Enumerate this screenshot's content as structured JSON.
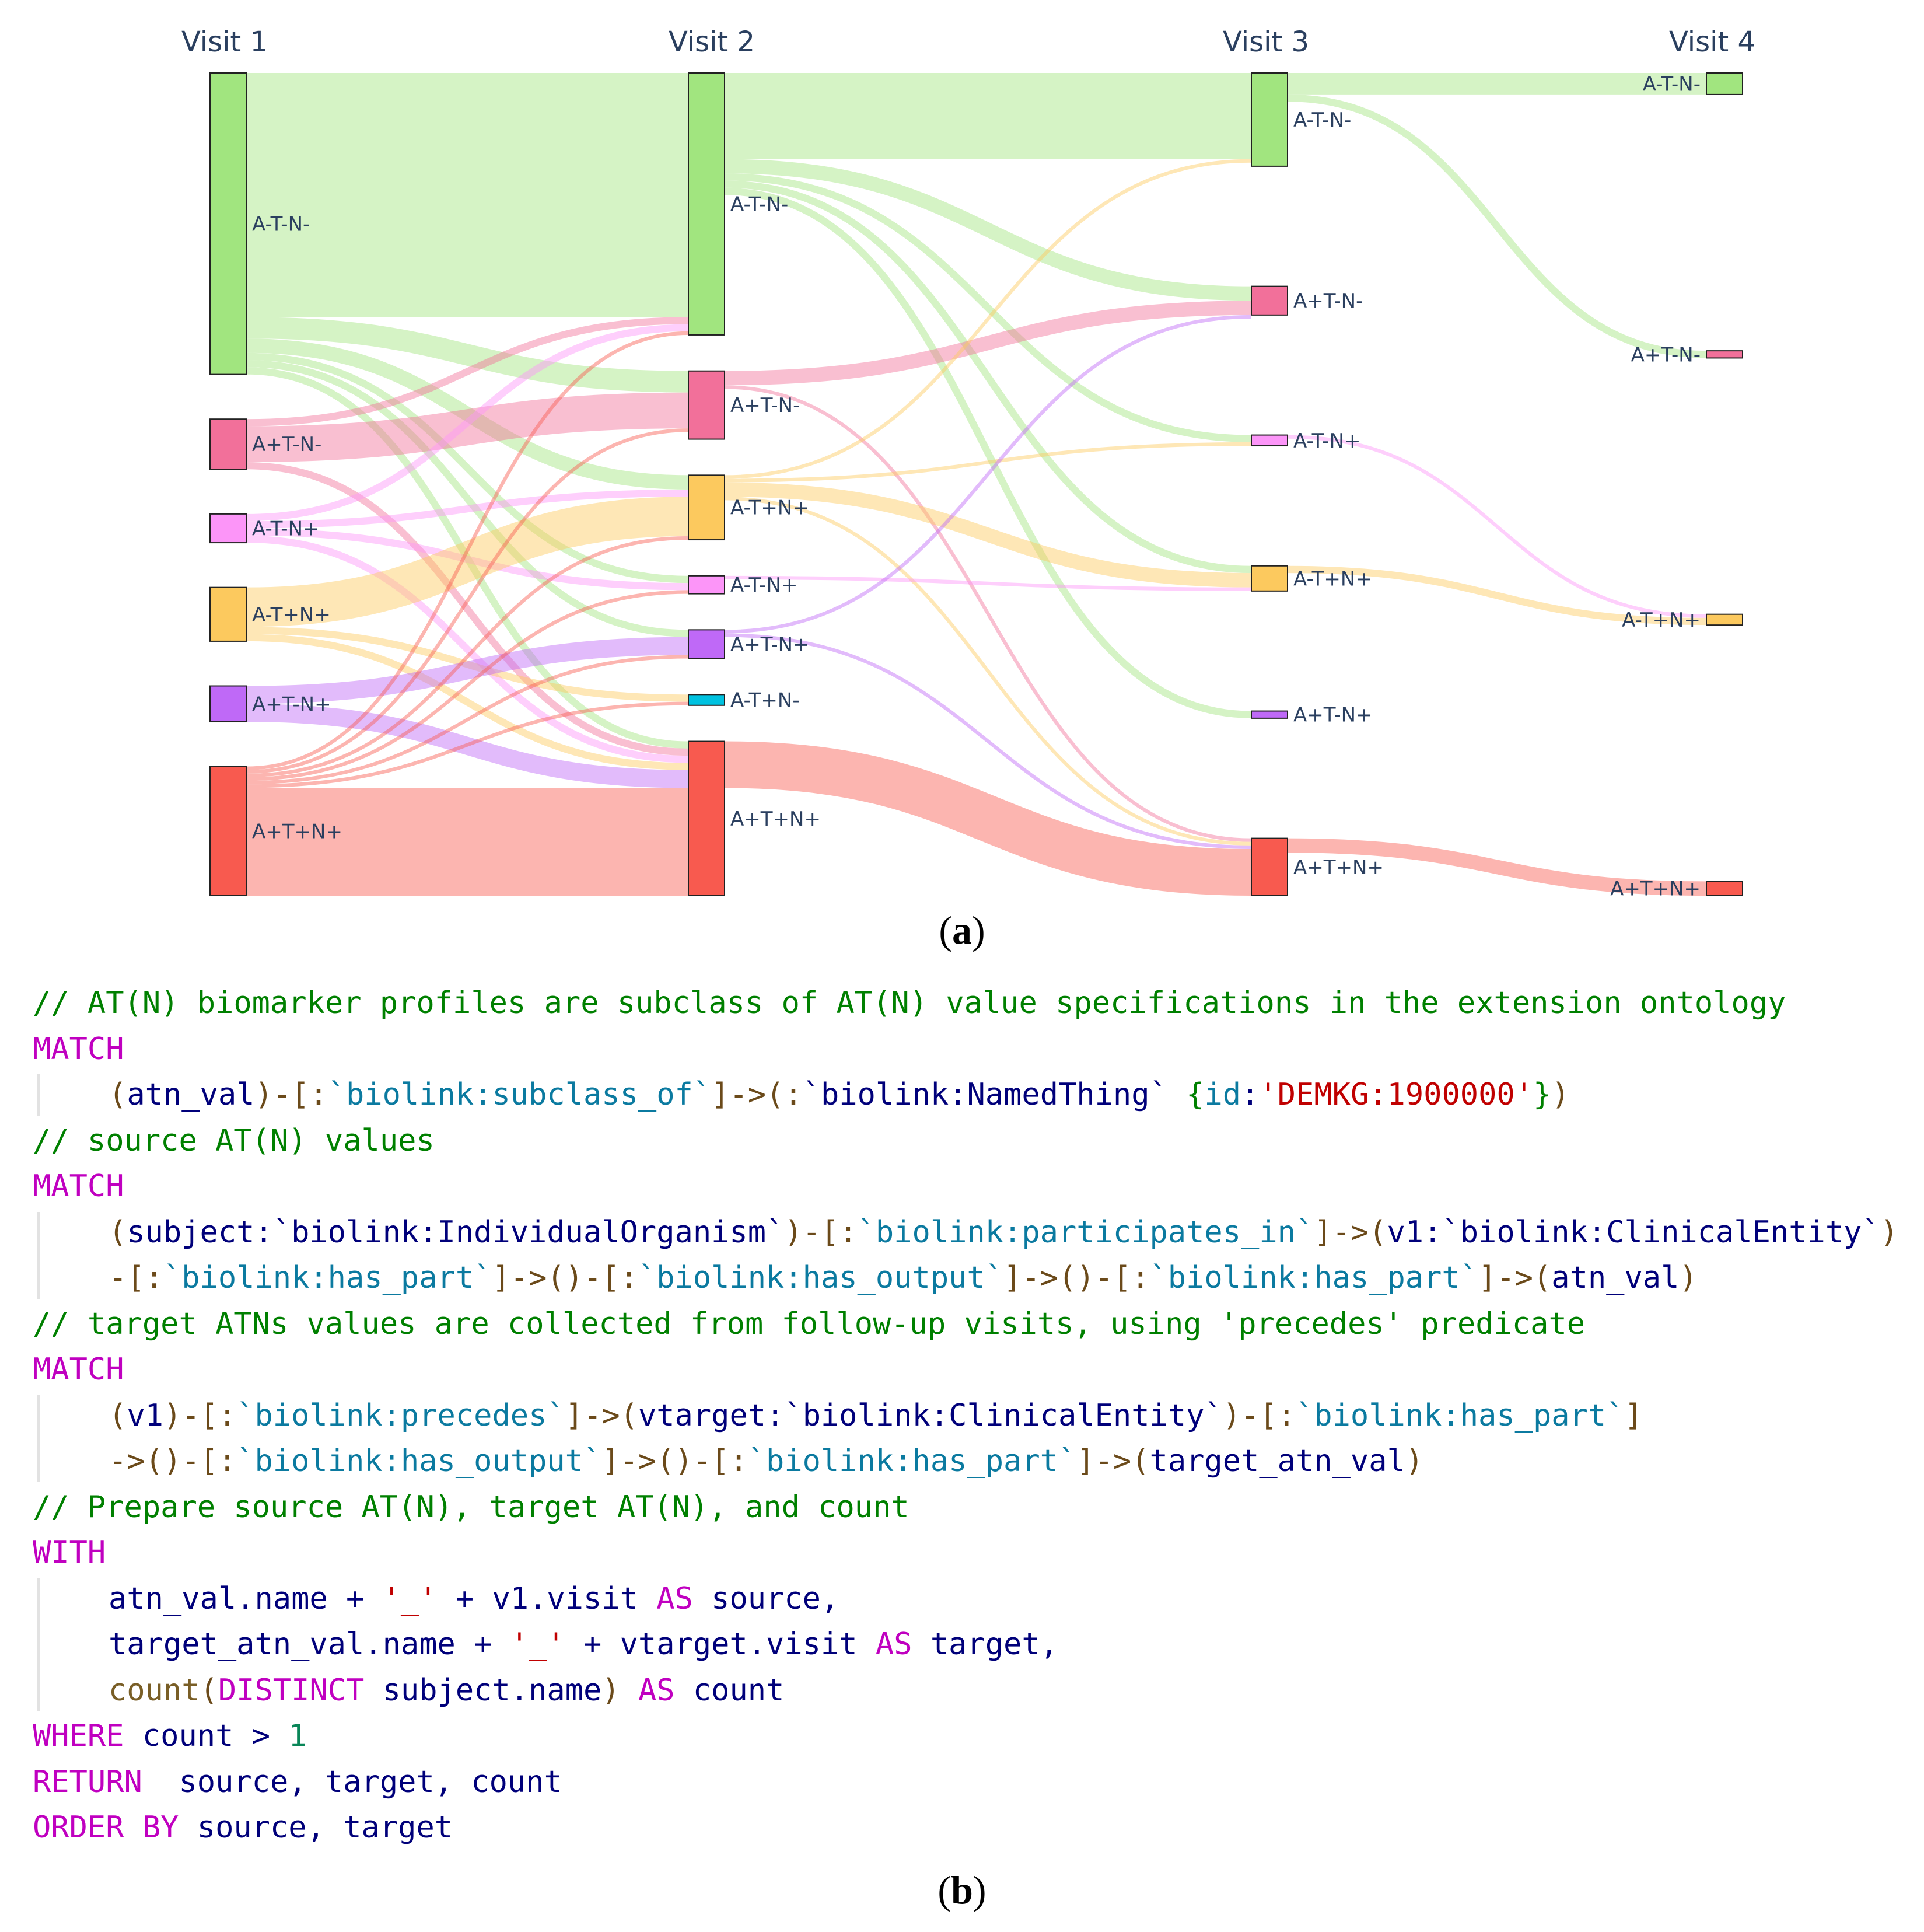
{
  "chart_data": {
    "type": "sankey",
    "title": "",
    "columns": [
      "Visit 1",
      "Visit 2",
      "Visit 3",
      "Visit 4"
    ],
    "nodes": [
      {
        "id": "v1_A-T-N-",
        "label": "A-T-N-",
        "col": 0,
        "value": 42,
        "color": "#a1e57f"
      },
      {
        "id": "v1_A+T-N-",
        "label": "A+T-N-",
        "col": 0,
        "value": 7,
        "color": "#f2709a"
      },
      {
        "id": "v1_A-T-N+",
        "label": "A-T-N+",
        "col": 0,
        "value": 4,
        "color": "#fc95f8"
      },
      {
        "id": "v1_A-T+N+",
        "label": "A-T+N+",
        "col": 0,
        "value": 7.5,
        "color": "#fcc95e"
      },
      {
        "id": "v1_A+T-N+",
        "label": "A+T-N+",
        "col": 0,
        "value": 5,
        "color": "#bf69f7"
      },
      {
        "id": "v1_A+T+N+",
        "label": "A+T+N+",
        "col": 0,
        "value": 18,
        "color": "#f85a4f"
      },
      {
        "id": "v2_A-T-N-",
        "label": "A-T-N-",
        "col": 1,
        "value": 36.5,
        "color": "#a1e57f"
      },
      {
        "id": "v2_A+T-N-",
        "label": "A+T-N-",
        "col": 1,
        "value": 9.5,
        "color": "#f2709a"
      },
      {
        "id": "v2_A-T+N+",
        "label": "A-T+N+",
        "col": 1,
        "value": 9,
        "color": "#fcc95e"
      },
      {
        "id": "v2_A-T-N+",
        "label": "A-T-N+",
        "col": 1,
        "value": 2.5,
        "color": "#fc95f8"
      },
      {
        "id": "v2_A+T-N+",
        "label": "A+T-N+",
        "col": 1,
        "value": 4,
        "color": "#bf69f7"
      },
      {
        "id": "v2_A-T+N-",
        "label": "A-T+N-",
        "col": 1,
        "value": 1.5,
        "color": "#00c2e0"
      },
      {
        "id": "v2_A+T+N+",
        "label": "A+T+N+",
        "col": 1,
        "value": 21.5,
        "color": "#f85a4f"
      },
      {
        "id": "v3_A-T-N-",
        "label": "A-T-N-",
        "col": 2,
        "value": 13,
        "color": "#a1e57f"
      },
      {
        "id": "v3_A+T-N-",
        "label": "A+T-N-",
        "col": 2,
        "value": 4,
        "color": "#f2709a"
      },
      {
        "id": "v3_A-T-N+",
        "label": "A-T-N+",
        "col": 2,
        "value": 1.5,
        "color": "#fc95f8"
      },
      {
        "id": "v3_A-T+N+",
        "label": "A-T+N+",
        "col": 2,
        "value": 3.5,
        "color": "#fcc95e"
      },
      {
        "id": "v3_A+T-N+",
        "label": "A+T-N+",
        "col": 2,
        "value": 1,
        "color": "#bf69f7"
      },
      {
        "id": "v3_A+T+N+",
        "label": "A+T+N+",
        "col": 2,
        "value": 8,
        "color": "#f85a4f"
      },
      {
        "id": "v4_A-T-N-",
        "label": "A-T-N-",
        "col": 3,
        "value": 3,
        "color": "#a1e57f"
      },
      {
        "id": "v4_A+T-N-",
        "label": "A+T-N-",
        "col": 3,
        "value": 1,
        "color": "#f2709a"
      },
      {
        "id": "v4_A-T+N+",
        "label": "A-T+N+",
        "col": 3,
        "value": 1.5,
        "color": "#fcc95e"
      },
      {
        "id": "v4_A+T+N+",
        "label": "A+T+N+",
        "col": 3,
        "value": 2,
        "color": "#f85a4f"
      }
    ],
    "links": [
      {
        "source": "v1_A-T-N-",
        "target": "v2_A-T-N-",
        "value": 34
      },
      {
        "source": "v1_A-T-N-",
        "target": "v2_A+T-N-",
        "value": 3
      },
      {
        "source": "v1_A-T-N-",
        "target": "v2_A-T+N+",
        "value": 2
      },
      {
        "source": "v1_A-T-N-",
        "target": "v2_A-T-N+",
        "value": 1
      },
      {
        "source": "v1_A-T-N-",
        "target": "v2_A+T-N+",
        "value": 1
      },
      {
        "source": "v1_A-T-N-",
        "target": "v2_A+T+N+",
        "value": 1
      },
      {
        "source": "v1_A+T-N-",
        "target": "v2_A-T-N-",
        "value": 1
      },
      {
        "source": "v1_A+T-N-",
        "target": "v2_A+T-N-",
        "value": 5
      },
      {
        "source": "v1_A+T-N-",
        "target": "v2_A+T+N+",
        "value": 1
      },
      {
        "source": "v1_A-T-N+",
        "target": "v2_A-T-N-",
        "value": 1
      },
      {
        "source": "v1_A-T-N+",
        "target": "v2_A-T+N+",
        "value": 1
      },
      {
        "source": "v1_A-T-N+",
        "target": "v2_A-T-N+",
        "value": 1
      },
      {
        "source": "v1_A-T-N+",
        "target": "v2_A+T+N+",
        "value": 1
      },
      {
        "source": "v1_A-T+N+",
        "target": "v2_A-T+N+",
        "value": 5.5
      },
      {
        "source": "v1_A-T+N+",
        "target": "v2_A-T+N-",
        "value": 1
      },
      {
        "source": "v1_A-T+N+",
        "target": "v2_A+T+N+",
        "value": 1
      },
      {
        "source": "v1_A+T-N+",
        "target": "v2_A+T-N+",
        "value": 2.5
      },
      {
        "source": "v1_A+T-N+",
        "target": "v2_A+T+N+",
        "value": 2.5
      },
      {
        "source": "v1_A+T+N+",
        "target": "v2_A-T-N-",
        "value": 0.5
      },
      {
        "source": "v1_A+T+N+",
        "target": "v2_A+T-N-",
        "value": 0.5
      },
      {
        "source": "v1_A+T+N+",
        "target": "v2_A-T+N+",
        "value": 0.5
      },
      {
        "source": "v1_A+T+N+",
        "target": "v2_A-T-N+",
        "value": 0.5
      },
      {
        "source": "v1_A+T+N+",
        "target": "v2_A+T-N+",
        "value": 0.5
      },
      {
        "source": "v1_A+T+N+",
        "target": "v2_A-T+N-",
        "value": 0.5
      },
      {
        "source": "v1_A+T+N+",
        "target": "v2_A+T+N+",
        "value": 15
      },
      {
        "source": "v2_A-T-N-",
        "target": "v3_A-T-N-",
        "value": 12
      },
      {
        "source": "v2_A-T-N-",
        "target": "v3_A+T-N-",
        "value": 2
      },
      {
        "source": "v2_A-T-N-",
        "target": "v3_A-T-N+",
        "value": 1
      },
      {
        "source": "v2_A-T-N-",
        "target": "v3_A-T+N+",
        "value": 1
      },
      {
        "source": "v2_A-T-N-",
        "target": "v3_A+T-N+",
        "value": 1
      },
      {
        "source": "v2_A+T-N-",
        "target": "v3_A+T-N-",
        "value": 2
      },
      {
        "source": "v2_A+T-N-",
        "target": "v3_A+T+N+",
        "value": 0.5
      },
      {
        "source": "v2_A-T+N+",
        "target": "v3_A-T-N-",
        "value": 0.5
      },
      {
        "source": "v2_A-T+N+",
        "target": "v3_A-T-N+",
        "value": 0.5
      },
      {
        "source": "v2_A-T+N+",
        "target": "v3_A-T+N+",
        "value": 2
      },
      {
        "source": "v2_A-T+N+",
        "target": "v3_A+T+N+",
        "value": 0.5
      },
      {
        "source": "v2_A-T-N+",
        "target": "v3_A-T+N+",
        "value": 0.5
      },
      {
        "source": "v2_A+T-N+",
        "target": "v3_A+T-N-",
        "value": 0.5
      },
      {
        "source": "v2_A+T-N+",
        "target": "v3_A+T+N+",
        "value": 0.5
      },
      {
        "source": "v2_A+T+N+",
        "target": "v3_A+T+N+",
        "value": 6.5
      },
      {
        "source": "v3_A-T-N-",
        "target": "v4_A-T-N-",
        "value": 3
      },
      {
        "source": "v3_A-T-N-",
        "target": "v4_A+T-N-",
        "value": 1
      },
      {
        "source": "v3_A-T-N+",
        "target": "v4_A-T+N+",
        "value": 0.5
      },
      {
        "source": "v3_A-T+N+",
        "target": "v4_A-T+N+",
        "value": 1
      },
      {
        "source": "v3_A+T+N+",
        "target": "v4_A+T+N+",
        "value": 2
      }
    ]
  },
  "captions": {
    "a": "a",
    "b": "b"
  },
  "code": {
    "lines": [
      {
        "indent": false,
        "tokens": [
          [
            "comment",
            "// AT(N) biomarker profiles are subclass of AT(N) value specifications in the extension ontology"
          ]
        ]
      },
      {
        "indent": false,
        "tokens": [
          [
            "kw",
            "MATCH"
          ]
        ]
      },
      {
        "indent": true,
        "tokens": [
          [
            "br",
            "("
          ],
          [
            "id",
            "atn_val"
          ],
          [
            "br",
            ")-[:"
          ],
          [
            "bl",
            "`biolink:subclass_of`"
          ],
          [
            "br",
            "]->(:"
          ],
          [
            "id",
            "`biolink:NamedThing`"
          ],
          [
            "id",
            " "
          ],
          [
            "gr",
            "{"
          ],
          [
            "bl",
            "id"
          ],
          [
            "id",
            ":"
          ],
          [
            "str",
            "'DEMKG:1900000'"
          ],
          [
            "gr",
            "}"
          ],
          [
            "br",
            ")"
          ]
        ]
      },
      {
        "indent": false,
        "tokens": [
          [
            "comment",
            "// source AT(N) values"
          ]
        ]
      },
      {
        "indent": false,
        "tokens": [
          [
            "kw",
            "MATCH"
          ]
        ]
      },
      {
        "indent": true,
        "tokens": [
          [
            "br",
            "("
          ],
          [
            "id",
            "subject:"
          ],
          [
            "id",
            "`biolink:IndividualOrganism`"
          ],
          [
            "br",
            ")-[:"
          ],
          [
            "bl",
            "`biolink:participates_in`"
          ],
          [
            "br",
            "]->("
          ],
          [
            "id",
            "v1:"
          ],
          [
            "id",
            "`biolink:ClinicalEntity`"
          ],
          [
            "br",
            ")"
          ]
        ]
      },
      {
        "indent": true,
        "tokens": [
          [
            "br",
            "-[:"
          ],
          [
            "bl",
            "`biolink:has_part`"
          ],
          [
            "br",
            "]->()-[:"
          ],
          [
            "bl",
            "`biolink:has_output`"
          ],
          [
            "br",
            "]->()-[:"
          ],
          [
            "bl",
            "`biolink:has_part`"
          ],
          [
            "br",
            "]->("
          ],
          [
            "id",
            "atn_val"
          ],
          [
            "br",
            ")"
          ]
        ]
      },
      {
        "indent": false,
        "tokens": [
          [
            "comment",
            "// target ATNs values are collected from follow-up visits, using 'precedes' predicate"
          ]
        ]
      },
      {
        "indent": false,
        "tokens": [
          [
            "kw",
            "MATCH"
          ]
        ]
      },
      {
        "indent": true,
        "tokens": [
          [
            "br",
            "("
          ],
          [
            "id",
            "v1"
          ],
          [
            "br",
            ")-[:"
          ],
          [
            "bl",
            "`biolink:precedes`"
          ],
          [
            "br",
            "]->("
          ],
          [
            "id",
            "vtarget:"
          ],
          [
            "id",
            "`biolink:ClinicalEntity`"
          ],
          [
            "br",
            ")-[:"
          ],
          [
            "bl",
            "`biolink:has_part`"
          ],
          [
            "br",
            "]"
          ]
        ]
      },
      {
        "indent": true,
        "tokens": [
          [
            "br",
            "->()-[:"
          ],
          [
            "bl",
            "`biolink:has_output`"
          ],
          [
            "br",
            "]->()-[:"
          ],
          [
            "bl",
            "`biolink:has_part`"
          ],
          [
            "br",
            "]->("
          ],
          [
            "id",
            "target_atn_val"
          ],
          [
            "br",
            ")"
          ]
        ]
      },
      {
        "indent": false,
        "tokens": [
          [
            "comment",
            "// Prepare source AT(N), target AT(N), and count"
          ]
        ]
      },
      {
        "indent": false,
        "tokens": [
          [
            "kw",
            "WITH"
          ]
        ]
      },
      {
        "indent": true,
        "tokens": [
          [
            "id",
            "atn_val.name + "
          ],
          [
            "str",
            "'_'"
          ],
          [
            "id",
            " + v1.visit "
          ],
          [
            "kw",
            "AS"
          ],
          [
            "id",
            " source,"
          ]
        ]
      },
      {
        "indent": true,
        "tokens": [
          [
            "id",
            "target_atn_val.name + "
          ],
          [
            "str",
            "'_'"
          ],
          [
            "id",
            " + vtarget.visit "
          ],
          [
            "kw",
            "AS"
          ],
          [
            "id",
            " target,"
          ]
        ]
      },
      {
        "indent": true,
        "tokens": [
          [
            "fn",
            "count"
          ],
          [
            "br",
            "("
          ],
          [
            "kw",
            "DISTINCT"
          ],
          [
            "id",
            " subject.name"
          ],
          [
            "br",
            ")"
          ],
          [
            "id",
            " "
          ],
          [
            "kw",
            "AS"
          ],
          [
            "id",
            " count"
          ]
        ]
      },
      {
        "indent": false,
        "tokens": [
          [
            "kw",
            "WHERE"
          ],
          [
            "id",
            " count > "
          ],
          [
            "num",
            "1"
          ]
        ]
      },
      {
        "indent": false,
        "tokens": [
          [
            "kw",
            "RETURN"
          ],
          [
            "id",
            "  source, target, count"
          ]
        ]
      },
      {
        "indent": false,
        "tokens": [
          [
            "kw",
            "ORDER BY"
          ],
          [
            "id",
            " source, target"
          ]
        ]
      }
    ]
  }
}
